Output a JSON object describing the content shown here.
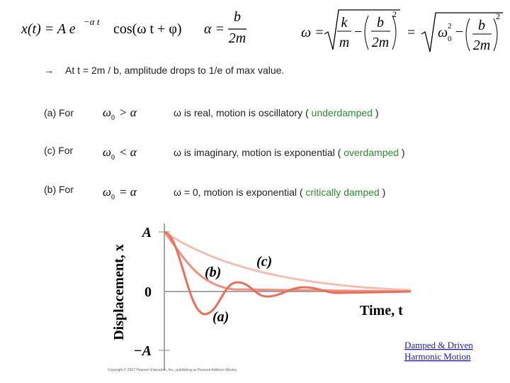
{
  "equations": {
    "position": {
      "lhs": "x(t) = A e",
      "exponent": "−α t",
      "rhs": "cos(ω t + φ)"
    },
    "alpha": {
      "lhs": "α =",
      "numerator": "b",
      "denominator": "2m"
    },
    "omega": {
      "lhs": "ω =",
      "k": "k",
      "m": "m",
      "minus": "−",
      "b": "b",
      "two_m": "2m",
      "power": "2",
      "equals": "=",
      "omega_symbol": "ω",
      "subscript": "0",
      "omega_power": "2",
      "minus2": "−",
      "b2": "b",
      "two_m2": "2m",
      "power2": "2"
    }
  },
  "note": {
    "arrow": "→",
    "text": "At  t = 2m / b,  amplitude drops to 1/e of max value."
  },
  "cases": [
    {
      "label": "(a)  For",
      "symbol": "ω",
      "subscript": "0",
      "relation": "> α",
      "description": "ω is real,   motion is oscillatory  ( ",
      "regime": "underdamped",
      "close": " )"
    },
    {
      "label": "(c)  For",
      "symbol": "ω",
      "subscript": "0",
      "relation": "< α",
      "description": "ω is imaginary,   motion is exponential  ( ",
      "regime": "overdamped",
      "close": " )"
    },
    {
      "label": "(b)  For",
      "symbol": "ω",
      "subscript": "0",
      "relation": "= α",
      "description": "ω = 0,  motion is exponential  ( ",
      "regime": "critically damped",
      "close": " )"
    }
  ],
  "graph": {
    "y_label": "Displacement, x",
    "x_label": "Time, t",
    "y_tick_top": "A",
    "y_tick_zero": "0",
    "y_tick_bottom": "−A",
    "curve_a": "(a)",
    "curve_b": "(b)",
    "curve_c": "(c)",
    "copyright": "Copyright © 2007 Pearson Education, Inc., publishing as Pearson Addison Wesley"
  },
  "link": {
    "line1": "Damped & Driven",
    "line2": "Harmonic Motion"
  }
}
